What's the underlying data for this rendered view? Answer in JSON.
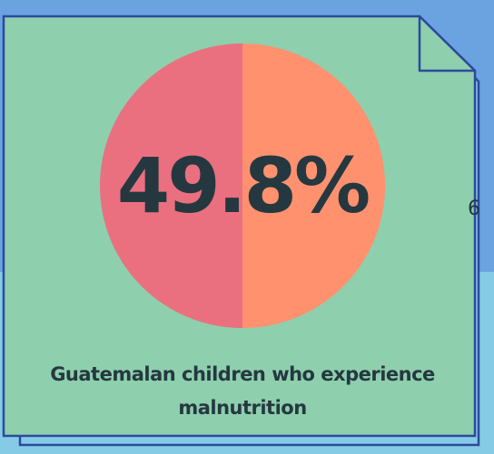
{
  "stat": {
    "value": "49.8%",
    "fraction": 0.498
  },
  "caption": {
    "line1": "Guatemalan children who experience",
    "line2": "malnutrition"
  },
  "stray_glyph": "6",
  "colors": {
    "background_top": "#6aa3e0",
    "background_bottom": "#86cbe6",
    "card": "#8ecfad",
    "card_border": "#2c4a9e",
    "pie_left": "#ea7080",
    "pie_right": "#ff916f",
    "text": "#253840"
  }
}
